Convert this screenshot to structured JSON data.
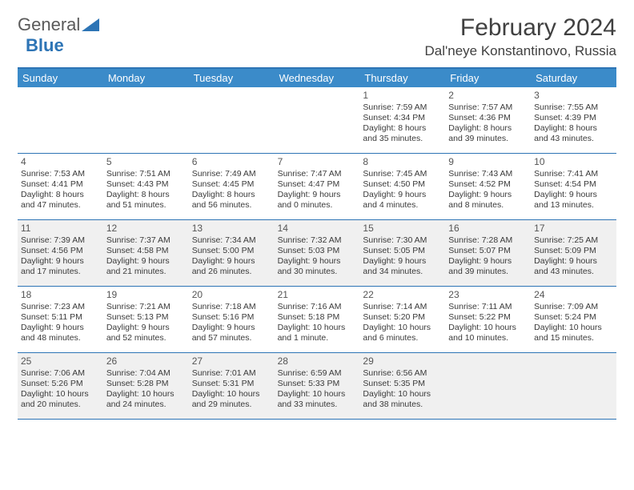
{
  "logo": {
    "text1": "General",
    "text2": "Blue"
  },
  "title": "February 2024",
  "location": "Dal'neye Konstantinovo, Russia",
  "colors": {
    "header_bg": "#3b8bc9",
    "border": "#2d74b5",
    "shade": "#f0f0f0",
    "text": "#3a3a3a",
    "logo_blue": "#2d74b5"
  },
  "day_names": [
    "Sunday",
    "Monday",
    "Tuesday",
    "Wednesday",
    "Thursday",
    "Friday",
    "Saturday"
  ],
  "weeks": [
    [
      {
        "empty": true
      },
      {
        "empty": true
      },
      {
        "empty": true
      },
      {
        "empty": true
      },
      {
        "day": "1",
        "sunrise": "Sunrise: 7:59 AM",
        "sunset": "Sunset: 4:34 PM",
        "daylight": "Daylight: 8 hours and 35 minutes."
      },
      {
        "day": "2",
        "sunrise": "Sunrise: 7:57 AM",
        "sunset": "Sunset: 4:36 PM",
        "daylight": "Daylight: 8 hours and 39 minutes."
      },
      {
        "day": "3",
        "sunrise": "Sunrise: 7:55 AM",
        "sunset": "Sunset: 4:39 PM",
        "daylight": "Daylight: 8 hours and 43 minutes."
      }
    ],
    [
      {
        "day": "4",
        "sunrise": "Sunrise: 7:53 AM",
        "sunset": "Sunset: 4:41 PM",
        "daylight": "Daylight: 8 hours and 47 minutes."
      },
      {
        "day": "5",
        "sunrise": "Sunrise: 7:51 AM",
        "sunset": "Sunset: 4:43 PM",
        "daylight": "Daylight: 8 hours and 51 minutes."
      },
      {
        "day": "6",
        "sunrise": "Sunrise: 7:49 AM",
        "sunset": "Sunset: 4:45 PM",
        "daylight": "Daylight: 8 hours and 56 minutes."
      },
      {
        "day": "7",
        "sunrise": "Sunrise: 7:47 AM",
        "sunset": "Sunset: 4:47 PM",
        "daylight": "Daylight: 9 hours and 0 minutes."
      },
      {
        "day": "8",
        "sunrise": "Sunrise: 7:45 AM",
        "sunset": "Sunset: 4:50 PM",
        "daylight": "Daylight: 9 hours and 4 minutes."
      },
      {
        "day": "9",
        "sunrise": "Sunrise: 7:43 AM",
        "sunset": "Sunset: 4:52 PM",
        "daylight": "Daylight: 9 hours and 8 minutes."
      },
      {
        "day": "10",
        "sunrise": "Sunrise: 7:41 AM",
        "sunset": "Sunset: 4:54 PM",
        "daylight": "Daylight: 9 hours and 13 minutes."
      }
    ],
    [
      {
        "day": "11",
        "sunrise": "Sunrise: 7:39 AM",
        "sunset": "Sunset: 4:56 PM",
        "daylight": "Daylight: 9 hours and 17 minutes.",
        "shaded": true
      },
      {
        "day": "12",
        "sunrise": "Sunrise: 7:37 AM",
        "sunset": "Sunset: 4:58 PM",
        "daylight": "Daylight: 9 hours and 21 minutes.",
        "shaded": true
      },
      {
        "day": "13",
        "sunrise": "Sunrise: 7:34 AM",
        "sunset": "Sunset: 5:00 PM",
        "daylight": "Daylight: 9 hours and 26 minutes.",
        "shaded": true
      },
      {
        "day": "14",
        "sunrise": "Sunrise: 7:32 AM",
        "sunset": "Sunset: 5:03 PM",
        "daylight": "Daylight: 9 hours and 30 minutes.",
        "shaded": true
      },
      {
        "day": "15",
        "sunrise": "Sunrise: 7:30 AM",
        "sunset": "Sunset: 5:05 PM",
        "daylight": "Daylight: 9 hours and 34 minutes.",
        "shaded": true
      },
      {
        "day": "16",
        "sunrise": "Sunrise: 7:28 AM",
        "sunset": "Sunset: 5:07 PM",
        "daylight": "Daylight: 9 hours and 39 minutes.",
        "shaded": true
      },
      {
        "day": "17",
        "sunrise": "Sunrise: 7:25 AM",
        "sunset": "Sunset: 5:09 PM",
        "daylight": "Daylight: 9 hours and 43 minutes.",
        "shaded": true
      }
    ],
    [
      {
        "day": "18",
        "sunrise": "Sunrise: 7:23 AM",
        "sunset": "Sunset: 5:11 PM",
        "daylight": "Daylight: 9 hours and 48 minutes."
      },
      {
        "day": "19",
        "sunrise": "Sunrise: 7:21 AM",
        "sunset": "Sunset: 5:13 PM",
        "daylight": "Daylight: 9 hours and 52 minutes."
      },
      {
        "day": "20",
        "sunrise": "Sunrise: 7:18 AM",
        "sunset": "Sunset: 5:16 PM",
        "daylight": "Daylight: 9 hours and 57 minutes."
      },
      {
        "day": "21",
        "sunrise": "Sunrise: 7:16 AM",
        "sunset": "Sunset: 5:18 PM",
        "daylight": "Daylight: 10 hours and 1 minute."
      },
      {
        "day": "22",
        "sunrise": "Sunrise: 7:14 AM",
        "sunset": "Sunset: 5:20 PM",
        "daylight": "Daylight: 10 hours and 6 minutes."
      },
      {
        "day": "23",
        "sunrise": "Sunrise: 7:11 AM",
        "sunset": "Sunset: 5:22 PM",
        "daylight": "Daylight: 10 hours and 10 minutes."
      },
      {
        "day": "24",
        "sunrise": "Sunrise: 7:09 AM",
        "sunset": "Sunset: 5:24 PM",
        "daylight": "Daylight: 10 hours and 15 minutes."
      }
    ],
    [
      {
        "day": "25",
        "sunrise": "Sunrise: 7:06 AM",
        "sunset": "Sunset: 5:26 PM",
        "daylight": "Daylight: 10 hours and 20 minutes.",
        "shaded": true
      },
      {
        "day": "26",
        "sunrise": "Sunrise: 7:04 AM",
        "sunset": "Sunset: 5:28 PM",
        "daylight": "Daylight: 10 hours and 24 minutes.",
        "shaded": true
      },
      {
        "day": "27",
        "sunrise": "Sunrise: 7:01 AM",
        "sunset": "Sunset: 5:31 PM",
        "daylight": "Daylight: 10 hours and 29 minutes.",
        "shaded": true
      },
      {
        "day": "28",
        "sunrise": "Sunrise: 6:59 AM",
        "sunset": "Sunset: 5:33 PM",
        "daylight": "Daylight: 10 hours and 33 minutes.",
        "shaded": true
      },
      {
        "day": "29",
        "sunrise": "Sunrise: 6:56 AM",
        "sunset": "Sunset: 5:35 PM",
        "daylight": "Daylight: 10 hours and 38 minutes.",
        "shaded": true
      },
      {
        "empty": true,
        "shaded": true
      },
      {
        "empty": true,
        "shaded": true
      }
    ]
  ]
}
